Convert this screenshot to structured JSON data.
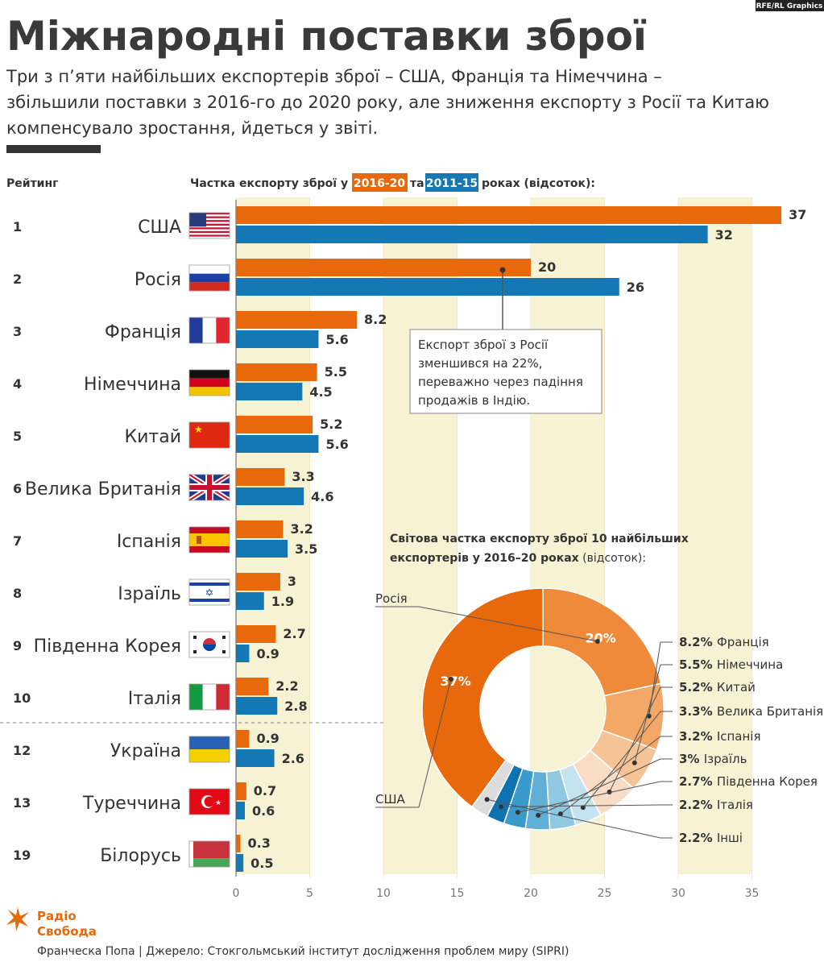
{
  "credit": "RFE/RL Graphics",
  "title": "Міжнародні поставки зброї",
  "subtitle_lines": [
    "Три з п’яти найбільших експортерів зброї – США, Франція та Німеччина –",
    "збільшили поставки з 2016-го до 2020 року, але зниження експорту з Росії та Китаю",
    "компенсувало зростання, йдеться у звіті."
  ],
  "rank_header": "Рейтинг",
  "legend": {
    "prefix": "Частка експорту зброї у",
    "series_a": "2016-20",
    "mid": "та",
    "series_b": "2011-15",
    "suffix": "роках (відсоток):"
  },
  "annotation_lines": [
    "Експорт зброї з Росії",
    "зменшився на 22%,",
    "переважно через падіння",
    "продажів в Індію."
  ],
  "colors": {
    "series_2016_20": "#e8690b",
    "series_2011_15": "#1478b4",
    "background_stripe": "#f7f2d4",
    "title": "#3a3a3a"
  },
  "chart_data": [
    {
      "type": "bar",
      "orientation": "horizontal",
      "title": "Частка експорту зброї у 2016-20 та 2011-15 роках (відсоток):",
      "xlim": [
        0,
        37
      ],
      "x_ticks": [
        0,
        5,
        10,
        15,
        20,
        25,
        30,
        35
      ],
      "categories": [
        "США",
        "Росія",
        "Франція",
        "Німеччина",
        "Китай",
        "Велика Британія",
        "Іспанія",
        "Ізраїль",
        "Південна Корея",
        "Італія",
        "Україна",
        "Туреччина",
        "Білорусь"
      ],
      "ranks": [
        "1",
        "2",
        "3",
        "4",
        "5",
        "6",
        "7",
        "8",
        "9",
        "10",
        "12",
        "13",
        "19"
      ],
      "flags": [
        "us-flag",
        "russia-flag",
        "france-flag",
        "germany-flag",
        "china-flag",
        "uk-flag",
        "spain-flag",
        "israel-flag",
        "south-korea-flag",
        "italy-flag",
        "ukraine-flag",
        "turkey-flag",
        "belarus-flag"
      ],
      "series": [
        {
          "name": "2016-20",
          "values": [
            37,
            20,
            8.2,
            5.5,
            5.2,
            3.3,
            3.2,
            3,
            2.7,
            2.2,
            0.9,
            0.7,
            0.3
          ],
          "labels": [
            "37",
            "20",
            "8.2",
            "5.5",
            "5.2",
            "3.3",
            "3.2",
            "3",
            "2.7",
            "2.2",
            "0.9",
            "0.7",
            "0.3"
          ]
        },
        {
          "name": "2011-15",
          "values": [
            32,
            26,
            5.6,
            4.5,
            5.6,
            4.6,
            3.5,
            1.9,
            0.9,
            2.8,
            2.6,
            0.6,
            0.5
          ],
          "labels": [
            "32",
            "26",
            "5.6",
            "4.5",
            "5.6",
            "4.6",
            "3.5",
            "1.9",
            "0.9",
            "2.8",
            "2.6",
            "0.6",
            "0.5"
          ]
        }
      ],
      "grid": true
    },
    {
      "type": "pie",
      "variant": "donut",
      "title_lines": [
        "Світова частка експорту зброї 10 найбільших",
        "експортерів у 2016–20 роках"
      ],
      "title_suffix": "(відсоток):",
      "slices": [
        {
          "label": "Росія",
          "value": 20,
          "color": "#ee8a3a",
          "inner_label": "20%"
        },
        {
          "label": "Франція",
          "value": 8.2,
          "value_label": "8.2%",
          "color": "#f3a867"
        },
        {
          "label": "Німеччина",
          "value": 5.5,
          "value_label": "5.5%",
          "color": "#f6c396"
        },
        {
          "label": "Китай",
          "value": 5.2,
          "value_label": "5.2%",
          "color": "#f9dcc5"
        },
        {
          "label": "Велика Британія",
          "value": 3.3,
          "value_label": "3.3%",
          "color": "#c5e3ef"
        },
        {
          "label": "Іспанія",
          "value": 3.2,
          "value_label": "3.2%",
          "color": "#90c8e2"
        },
        {
          "label": "Ізраїль",
          "value": 3,
          "value_label": "3%",
          "color": "#5fafd6"
        },
        {
          "label": "Південна Корея",
          "value": 2.7,
          "value_label": "2.7%",
          "color": "#3a9acb"
        },
        {
          "label": "Італія",
          "value": 2.2,
          "value_label": "2.2%",
          "color": "#0e72b0"
        },
        {
          "label": "Інші",
          "value": 2.2,
          "value_label": "2.2%",
          "color": "#dcdcdc"
        },
        {
          "label": "США",
          "value": 37,
          "color": "#e8690b",
          "inner_label": "37%"
        }
      ]
    }
  ],
  "footer": {
    "logo_line1": "Радіо",
    "logo_line2": "Свобода",
    "source": "Франческа Попа | Джерело: Стокгольмський інститут дослідження проблем миру (SIPRI)"
  }
}
